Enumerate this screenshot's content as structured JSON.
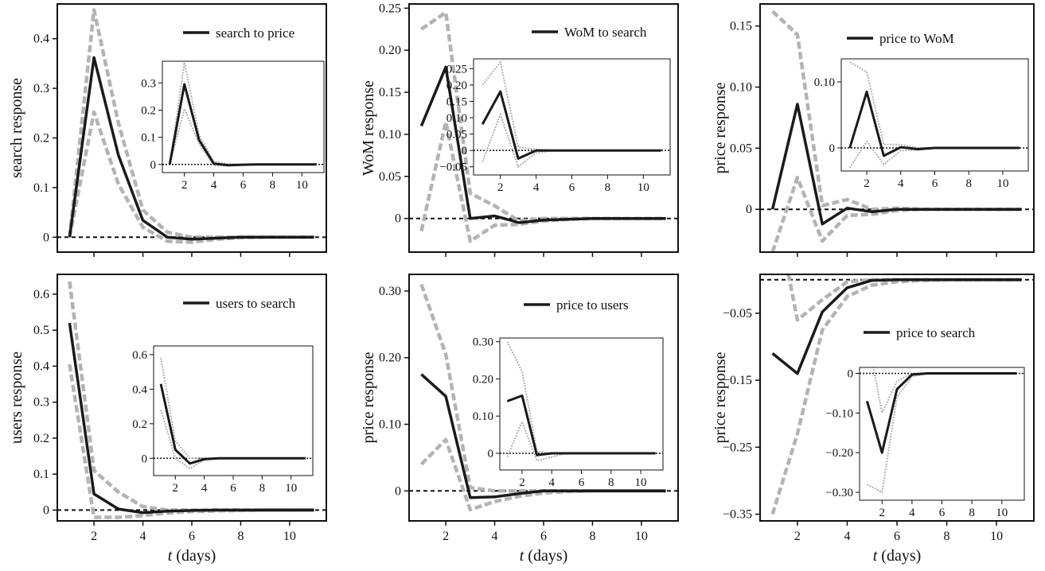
{
  "figure": {
    "xlabel_var": "t",
    "xlabel_unit": " (days)"
  },
  "chart_data": [
    {
      "type": "line",
      "legend": "search to price",
      "legend_position": "top-right",
      "ylabel": "search response",
      "xlim": [
        0.5,
        11.5
      ],
      "ylim": [
        -0.03,
        0.47
      ],
      "yticks": [
        0,
        0.1,
        0.2,
        0.3,
        0.4
      ],
      "ytick_labels": [
        "0",
        "0.1",
        "0.2",
        "0.3",
        "0.4"
      ],
      "xticks": [
        2,
        4,
        6,
        8,
        10
      ],
      "x": [
        1,
        2,
        3,
        4,
        5,
        6,
        7,
        8,
        9,
        10,
        11
      ],
      "response": [
        0,
        0.362,
        0.165,
        0.034,
        0,
        -0.004,
        -0.002,
        0,
        0,
        0,
        0
      ],
      "upper": [
        0,
        0.458,
        0.23,
        0.055,
        0.01,
        0,
        0,
        0,
        0,
        0,
        0
      ],
      "lower": [
        0,
        0.252,
        0.107,
        0.02,
        -0.008,
        -0.01,
        -0.004,
        -0.001,
        0,
        0,
        0
      ],
      "inset": {
        "xlim": [
          0.5,
          11.5
        ],
        "ylim": [
          -0.03,
          0.38
        ],
        "yticks": [
          0,
          0.1,
          0.2,
          0.3
        ],
        "ytick_labels": [
          "0",
          "0.1",
          "0.2",
          "0.3"
        ],
        "xticks": [
          2,
          4,
          6,
          8,
          10
        ],
        "response": [
          0,
          0.295,
          0.09,
          0.003,
          -0.003,
          -0.001,
          0,
          0,
          0,
          0,
          0
        ],
        "upper": [
          0,
          0.375,
          0.11,
          0.01,
          0.002,
          0,
          0,
          0,
          0,
          0,
          0
        ],
        "lower": [
          0,
          0.205,
          0.075,
          -0.004,
          -0.005,
          -0.001,
          0,
          0,
          0,
          0,
          0
        ]
      }
    },
    {
      "type": "line",
      "legend": "WoM to search",
      "legend_position": "top-right",
      "ylabel": "WoM response",
      "xlim": [
        0.5,
        11.5
      ],
      "ylim": [
        -0.04,
        0.255
      ],
      "yticks": [
        0,
        0.05,
        0.1,
        0.15,
        0.2,
        0.25
      ],
      "ytick_labels": [
        "0",
        "0.05",
        "0.10",
        "0.15",
        "0.20",
        "0.25"
      ],
      "xticks": [
        2,
        4,
        6,
        8,
        10
      ],
      "x": [
        1,
        2,
        3,
        4,
        5,
        6,
        7,
        8,
        9,
        10,
        11
      ],
      "response": [
        0.11,
        0.18,
        0,
        0.003,
        -0.005,
        -0.002,
        -0.001,
        0,
        0,
        0,
        0
      ],
      "upper": [
        0.225,
        0.245,
        0.03,
        0.015,
        -0.003,
        0,
        0,
        0,
        0,
        0,
        0
      ],
      "lower": [
        -0.015,
        0.115,
        -0.027,
        -0.008,
        -0.007,
        -0.003,
        -0.001,
        0,
        0,
        0,
        0
      ],
      "inset": {
        "xlim": [
          0.5,
          11.5
        ],
        "ylim": [
          -0.075,
          0.28
        ],
        "yticks": [
          -0.05,
          0,
          0.05,
          0.1,
          0.15,
          0.2,
          0.25
        ],
        "ytick_labels": [
          "−0.05",
          "0",
          "0.05",
          "0.10",
          "0.15",
          "0.20",
          "0.25"
        ],
        "xticks": [
          2,
          4,
          6,
          8,
          10
        ],
        "response": [
          0.08,
          0.18,
          -0.025,
          0,
          0,
          0,
          0,
          0,
          0,
          0,
          0
        ],
        "upper": [
          0.2,
          0.27,
          0.01,
          0.003,
          0,
          0,
          0,
          0,
          0,
          0,
          0
        ],
        "lower": [
          -0.035,
          0.11,
          -0.05,
          -0.008,
          0,
          0,
          0,
          0,
          0,
          0,
          0
        ]
      }
    },
    {
      "type": "line",
      "legend": "price to WoM",
      "legend_position": "top-right",
      "ylabel": "price response",
      "xlim": [
        0.5,
        11.5
      ],
      "ylim": [
        -0.035,
        0.168
      ],
      "yticks": [
        0,
        0.05,
        0.1,
        0.15
      ],
      "ytick_labels": [
        "0",
        "0.05",
        "0.10",
        "0.15"
      ],
      "xticks": [
        2,
        4,
        6,
        8,
        10
      ],
      "x": [
        1,
        2,
        3,
        4,
        5,
        6,
        7,
        8,
        9,
        10,
        11
      ],
      "response": [
        0,
        0.086,
        -0.012,
        0.001,
        -0.002,
        0,
        0,
        0,
        0,
        0,
        0
      ],
      "upper": [
        0.162,
        0.143,
        0.003,
        0.008,
        0,
        0.001,
        0,
        0,
        0,
        0,
        0
      ],
      "lower": [
        -0.035,
        0.026,
        -0.026,
        -0.005,
        -0.004,
        -0.001,
        0,
        0,
        0,
        0,
        0
      ],
      "inset": {
        "xlim": [
          0.5,
          11.5
        ],
        "ylim": [
          -0.035,
          0.135
        ],
        "yticks": [
          0,
          0.1
        ],
        "ytick_labels": [
          "0",
          "0.10"
        ],
        "xticks": [
          2,
          4,
          6,
          8,
          10
        ],
        "response": [
          0,
          0.085,
          -0.012,
          0.001,
          -0.002,
          0,
          0,
          0,
          0,
          0,
          0
        ],
        "upper": [
          0.13,
          0.115,
          0.005,
          0.005,
          0,
          0,
          0,
          0,
          0,
          0,
          0
        ],
        "lower": [
          -0.03,
          0.01,
          -0.025,
          -0.004,
          -0.003,
          0,
          0,
          0,
          0,
          0,
          0
        ]
      }
    },
    {
      "type": "line",
      "legend": "users to search",
      "legend_position": "top-right",
      "ylabel": "users response",
      "xlim": [
        0.5,
        11.5
      ],
      "ylim": [
        -0.03,
        0.655
      ],
      "yticks": [
        0,
        0.1,
        0.2,
        0.3,
        0.4,
        0.5,
        0.6
      ],
      "ytick_labels": [
        "0",
        "0.1",
        "0.2",
        "0.3",
        "0.4",
        "0.5",
        "0.6"
      ],
      "xticks": [
        2,
        4,
        6,
        8,
        10
      ],
      "x": [
        1,
        2,
        3,
        4,
        5,
        6,
        7,
        8,
        9,
        10,
        11
      ],
      "response": [
        0.52,
        0.045,
        0.003,
        -0.007,
        -0.003,
        -0.001,
        0,
        0,
        0,
        0,
        0
      ],
      "upper": [
        0.635,
        0.11,
        0.05,
        0.01,
        0,
        0,
        0,
        0,
        0,
        0,
        0
      ],
      "lower": [
        0.405,
        -0.02,
        -0.02,
        -0.015,
        -0.008,
        -0.004,
        -0.002,
        -0.001,
        0,
        0,
        0
      ],
      "inset": {
        "xlim": [
          0.5,
          11.5
        ],
        "ylim": [
          -0.1,
          0.65
        ],
        "yticks": [
          0,
          0.2,
          0.4,
          0.6
        ],
        "ytick_labels": [
          "0",
          "0.2",
          "0.4",
          "0.6"
        ],
        "xticks": [
          2,
          4,
          6,
          8,
          10
        ],
        "response": [
          0.43,
          0.05,
          -0.03,
          -0.005,
          0,
          0,
          0,
          0,
          0,
          0,
          0
        ],
        "upper": [
          0.58,
          0.1,
          0,
          0,
          0,
          0,
          0,
          0,
          0,
          0,
          0
        ],
        "lower": [
          0.28,
          0,
          -0.06,
          -0.01,
          -0.002,
          0,
          0,
          0,
          0,
          0,
          0
        ]
      }
    },
    {
      "type": "line",
      "legend": "price to users",
      "legend_position": "top-right",
      "ylabel": "price response",
      "xlim": [
        0.5,
        11.5
      ],
      "ylim": [
        -0.045,
        0.325
      ],
      "yticks": [
        0,
        0.1,
        0.2,
        0.3
      ],
      "ytick_labels": [
        "0",
        "0.10",
        "0.20",
        "0.30"
      ],
      "xticks": [
        2,
        4,
        6,
        8,
        10
      ],
      "x": [
        1,
        2,
        3,
        4,
        5,
        6,
        7,
        8,
        9,
        10,
        11
      ],
      "response": [
        0.175,
        0.142,
        -0.01,
        -0.009,
        -0.004,
        0,
        0,
        0,
        0,
        0,
        0
      ],
      "upper": [
        0.31,
        0.205,
        0.005,
        0,
        0,
        0,
        0,
        0,
        0,
        0,
        0
      ],
      "lower": [
        0.04,
        0.077,
        -0.028,
        -0.016,
        -0.008,
        -0.003,
        -0.001,
        0,
        0,
        0,
        0
      ],
      "inset": {
        "xlim": [
          0.5,
          11.5
        ],
        "ylim": [
          -0.045,
          0.31
        ],
        "yticks": [
          0,
          0.1,
          0.2,
          0.3
        ],
        "ytick_labels": [
          "0",
          "0.10",
          "0.20",
          "0.30"
        ],
        "xticks": [
          2,
          4,
          6,
          8,
          10
        ],
        "response": [
          0.14,
          0.155,
          -0.005,
          0,
          0,
          0,
          0,
          0,
          0,
          0,
          0
        ],
        "upper": [
          0.3,
          0.22,
          0.005,
          0,
          0,
          0,
          0,
          0,
          0,
          0,
          0
        ],
        "lower": [
          -0.01,
          0.085,
          -0.02,
          -0.01,
          0,
          0,
          0,
          0,
          0,
          0,
          0
        ]
      }
    },
    {
      "type": "line",
      "legend": "price to search",
      "legend_position": "center-right",
      "ylabel": "price response",
      "xlim": [
        0.5,
        11.5
      ],
      "ylim": [
        -0.36,
        0.008
      ],
      "yticks": [
        -0.35,
        -0.25,
        -0.15,
        -0.05
      ],
      "ytick_labels": [
        "−0.35",
        "−0.25",
        "−0.15",
        "−0.05"
      ],
      "xticks": [
        2,
        4,
        6,
        8,
        10
      ],
      "x": [
        1,
        2,
        3,
        4,
        5,
        6,
        7,
        8,
        9,
        10,
        11
      ],
      "response": [
        -0.11,
        -0.14,
        -0.048,
        -0.012,
        -0.001,
        0,
        0,
        0,
        0,
        0,
        0
      ],
      "upper": [
        0.13,
        -0.06,
        -0.03,
        -0.003,
        0,
        0,
        0,
        0,
        0,
        0,
        0
      ],
      "lower": [
        -0.35,
        -0.23,
        -0.075,
        -0.025,
        -0.008,
        -0.003,
        -0.001,
        0,
        0,
        0,
        0
      ],
      "inset": {
        "xlim": [
          0.5,
          11.5
        ],
        "ylim": [
          -0.32,
          0.015
        ],
        "yticks": [
          -0.3,
          -0.2,
          -0.1,
          0
        ],
        "ytick_labels": [
          "−0.30",
          "−0.20",
          "−0.10",
          "0"
        ],
        "xticks": [
          2,
          4,
          6,
          8,
          10
        ],
        "response": [
          -0.07,
          -0.2,
          -0.04,
          -0.003,
          0,
          0,
          0,
          0,
          0,
          0,
          0
        ],
        "upper": [
          0.1,
          -0.1,
          -0.02,
          0,
          0,
          0,
          0,
          0,
          0,
          0,
          0
        ],
        "lower": [
          -0.28,
          -0.3,
          -0.06,
          -0.008,
          -0.001,
          0,
          0,
          0,
          0,
          0,
          0
        ]
      }
    }
  ]
}
